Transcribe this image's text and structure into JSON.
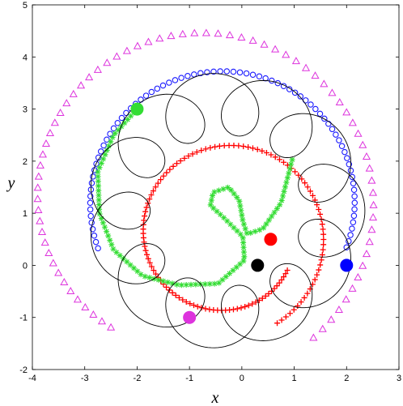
{
  "chart_data": {
    "type": "scatter",
    "xlabel": "x",
    "ylabel": "y",
    "xlim": [
      -4,
      3
    ],
    "ylim": [
      -2,
      5
    ],
    "xticks": [
      -4,
      -3,
      -2,
      -1,
      0,
      1,
      2,
      3
    ],
    "yticks": [
      -2,
      -1,
      0,
      1,
      2,
      3,
      4,
      5
    ],
    "grid": false,
    "legend": "none",
    "series": [
      {
        "marker": "triangle",
        "color": "#dd33dd",
        "spiral": {
          "center": [
            -0.85,
            1.25
          ],
          "start_angle_deg": 236,
          "end_angle_deg": -50,
          "radius_start": 2.95,
          "radius_end": 3.45,
          "points": 72
        },
        "end_point": {
          "x": -1.0,
          "y": -1.0,
          "color": "#dd33dd"
        }
      },
      {
        "marker": "circle-open",
        "color": "#1a1aff",
        "spiral": {
          "center": [
            -0.35,
            1.2
          ],
          "start_angle_deg": 200,
          "end_angle_deg": -20,
          "radius_start": 2.55,
          "radius_end": 2.5,
          "points": 78
        },
        "end_point": {
          "x": 2.0,
          "y": 0.0,
          "color": "#0000ff"
        }
      },
      {
        "marker": "plus",
        "color": "#ff0000",
        "spiral": {
          "center": [
            -0.3,
            0.58
          ],
          "start_angle_deg": -60,
          "end_angle_deg": 330,
          "radius_start": 1.95,
          "radius_end": 1.35,
          "points": 130
        },
        "end_point": {
          "x": 0.55,
          "y": 0.5,
          "color": "#ff0000"
        }
      },
      {
        "marker": "asterisk",
        "color": "#33dd33",
        "path": [
          [
            -2.0,
            3.0
          ],
          [
            -2.45,
            2.5
          ],
          [
            -2.75,
            1.8
          ],
          [
            -2.72,
            1.0
          ],
          [
            -2.45,
            0.3
          ],
          [
            -1.9,
            -0.2
          ],
          [
            -1.2,
            -0.38
          ],
          [
            -0.45,
            -0.35
          ],
          [
            0.05,
            0.1
          ],
          [
            0.02,
            0.55
          ],
          [
            -0.35,
            0.92
          ],
          [
            -0.6,
            1.15
          ],
          [
            -0.55,
            1.4
          ],
          [
            -0.25,
            1.5
          ],
          [
            -0.05,
            1.25
          ],
          [
            0.02,
            0.85
          ],
          [
            0.1,
            0.6
          ],
          [
            0.4,
            0.7
          ],
          [
            0.75,
            1.2
          ],
          [
            0.98,
            2.1
          ]
        ],
        "end_point": {
          "x": -2.0,
          "y": 3.0,
          "color": "#33dd33"
        }
      },
      {
        "marker": "line",
        "color": "#000000",
        "epicycle": {
          "center": [
            -0.3,
            1.05
          ],
          "R": 2.05,
          "r": 0.6,
          "base_angle_deg": 180,
          "loops": 12,
          "turns": 1.0
        },
        "end_point": {
          "x": 0.3,
          "y": 0.0,
          "color": "#000000"
        }
      }
    ]
  }
}
